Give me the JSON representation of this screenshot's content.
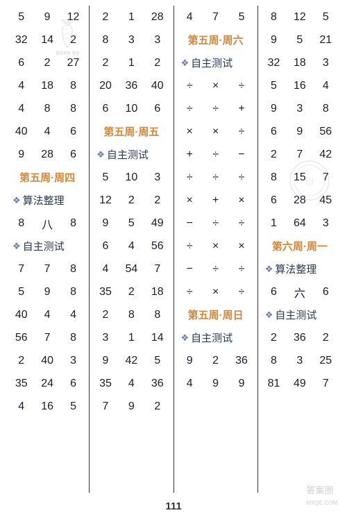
{
  "page_number": "111",
  "watermark": "答案圈",
  "watermark2": "MXQE.COM",
  "decorative_text": "핫핫핫핫\n핫핫",
  "columns": [
    {
      "rows": [
        {
          "type": "data",
          "cells": [
            "5",
            "9",
            "12"
          ]
        },
        {
          "type": "data",
          "cells": [
            "32",
            "14",
            "2"
          ]
        },
        {
          "type": "data",
          "cells": [
            "6",
            "2",
            "27"
          ]
        },
        {
          "type": "data",
          "cells": [
            "4",
            "18",
            "8"
          ]
        },
        {
          "type": "data",
          "cells": [
            "4",
            "8",
            "8"
          ]
        },
        {
          "type": "data",
          "cells": [
            "40",
            "4",
            "6"
          ]
        },
        {
          "type": "data",
          "cells": [
            "9",
            "28",
            "6"
          ]
        },
        {
          "type": "heading",
          "text": "第五周·周四"
        },
        {
          "type": "subheading",
          "text": "算法整理"
        },
        {
          "type": "data",
          "cells": [
            "8",
            "八",
            "8"
          ]
        },
        {
          "type": "subheading",
          "text": "自主测试"
        },
        {
          "type": "data",
          "cells": [
            "7",
            "7",
            "8"
          ]
        },
        {
          "type": "data",
          "cells": [
            "5",
            "9",
            "8"
          ]
        },
        {
          "type": "data",
          "cells": [
            "40",
            "4",
            "4"
          ]
        },
        {
          "type": "data",
          "cells": [
            "56",
            "7",
            "8"
          ]
        },
        {
          "type": "data",
          "cells": [
            "2",
            "40",
            "3"
          ]
        },
        {
          "type": "data",
          "cells": [
            "35",
            "24",
            "6"
          ]
        },
        {
          "type": "data",
          "cells": [
            "4",
            "16",
            "5"
          ]
        }
      ]
    },
    {
      "rows": [
        {
          "type": "data",
          "cells": [
            "2",
            "1",
            "28"
          ]
        },
        {
          "type": "data",
          "cells": [
            "8",
            "3",
            "3"
          ]
        },
        {
          "type": "data",
          "cells": [
            "2",
            "1",
            "2"
          ]
        },
        {
          "type": "data",
          "cells": [
            "20",
            "36",
            "40"
          ]
        },
        {
          "type": "data",
          "cells": [
            "6",
            "10",
            "6"
          ]
        },
        {
          "type": "heading",
          "text": "第五周·周五"
        },
        {
          "type": "subheading",
          "text": "自主测试"
        },
        {
          "type": "data",
          "cells": [
            "5",
            "10",
            "3"
          ]
        },
        {
          "type": "data",
          "cells": [
            "12",
            "2",
            "2"
          ]
        },
        {
          "type": "data",
          "cells": [
            "9",
            "5",
            "49"
          ]
        },
        {
          "type": "data",
          "cells": [
            "6",
            "4",
            "56"
          ]
        },
        {
          "type": "data",
          "cells": [
            "4",
            "54",
            "7"
          ]
        },
        {
          "type": "data",
          "cells": [
            "35",
            "2",
            "18"
          ]
        },
        {
          "type": "data",
          "cells": [
            "2",
            "8",
            "8"
          ]
        },
        {
          "type": "data",
          "cells": [
            "3",
            "1",
            "14"
          ]
        },
        {
          "type": "data",
          "cells": [
            "9",
            "42",
            "5"
          ]
        },
        {
          "type": "data",
          "cells": [
            "35",
            "4",
            "36"
          ]
        },
        {
          "type": "data",
          "cells": [
            "7",
            "9",
            "2"
          ]
        }
      ]
    },
    {
      "rows": [
        {
          "type": "data",
          "cells": [
            "4",
            "7",
            "5"
          ]
        },
        {
          "type": "heading",
          "text": "第五周·周六"
        },
        {
          "type": "subheading",
          "text": "自主测试"
        },
        {
          "type": "data",
          "cells": [
            "÷",
            "×",
            "÷"
          ]
        },
        {
          "type": "data",
          "cells": [
            "÷",
            "÷",
            "+"
          ]
        },
        {
          "type": "data",
          "cells": [
            "×",
            "×",
            "÷"
          ]
        },
        {
          "type": "data",
          "cells": [
            "+",
            "÷",
            "−"
          ]
        },
        {
          "type": "data",
          "cells": [
            "÷",
            "÷",
            "÷"
          ]
        },
        {
          "type": "data",
          "cells": [
            "×",
            "+",
            "×"
          ]
        },
        {
          "type": "data",
          "cells": [
            "−",
            "÷",
            "÷"
          ]
        },
        {
          "type": "data",
          "cells": [
            "÷",
            "×",
            "×"
          ]
        },
        {
          "type": "data",
          "cells": [
            "−",
            "÷",
            "÷"
          ]
        },
        {
          "type": "data",
          "cells": [
            "÷",
            "×",
            "÷"
          ]
        },
        {
          "type": "heading",
          "text": "第五周·周日"
        },
        {
          "type": "subheading",
          "text": "自主测试"
        },
        {
          "type": "data",
          "cells": [
            "9",
            "2",
            "36"
          ]
        },
        {
          "type": "data",
          "cells": [
            "4",
            "9",
            "9"
          ]
        }
      ]
    },
    {
      "rows": [
        {
          "type": "data",
          "cells": [
            "8",
            "12",
            "5"
          ]
        },
        {
          "type": "data",
          "cells": [
            "9",
            "5",
            "21"
          ]
        },
        {
          "type": "data",
          "cells": [
            "32",
            "18",
            "3"
          ]
        },
        {
          "type": "data",
          "cells": [
            "5",
            "16",
            "4"
          ]
        },
        {
          "type": "data",
          "cells": [
            "9",
            "3",
            "8"
          ]
        },
        {
          "type": "data",
          "cells": [
            "6",
            "9",
            "56"
          ]
        },
        {
          "type": "data",
          "cells": [
            "2",
            "7",
            "42"
          ]
        },
        {
          "type": "data",
          "cells": [
            "8",
            "15",
            "7"
          ]
        },
        {
          "type": "data",
          "cells": [
            "6",
            "28",
            "45"
          ]
        },
        {
          "type": "data",
          "cells": [
            "1",
            "64",
            "3"
          ]
        },
        {
          "type": "heading",
          "text": "第六周·周一"
        },
        {
          "type": "subheading",
          "text": "算法整理"
        },
        {
          "type": "data",
          "cells": [
            "6",
            "六",
            "6"
          ]
        },
        {
          "type": "subheading",
          "text": "自主测试"
        },
        {
          "type": "data",
          "cells": [
            "2",
            "36",
            "2"
          ]
        },
        {
          "type": "data",
          "cells": [
            "8",
            "3",
            "25"
          ]
        },
        {
          "type": "data",
          "cells": [
            "81",
            "49",
            "7"
          ]
        }
      ]
    }
  ]
}
